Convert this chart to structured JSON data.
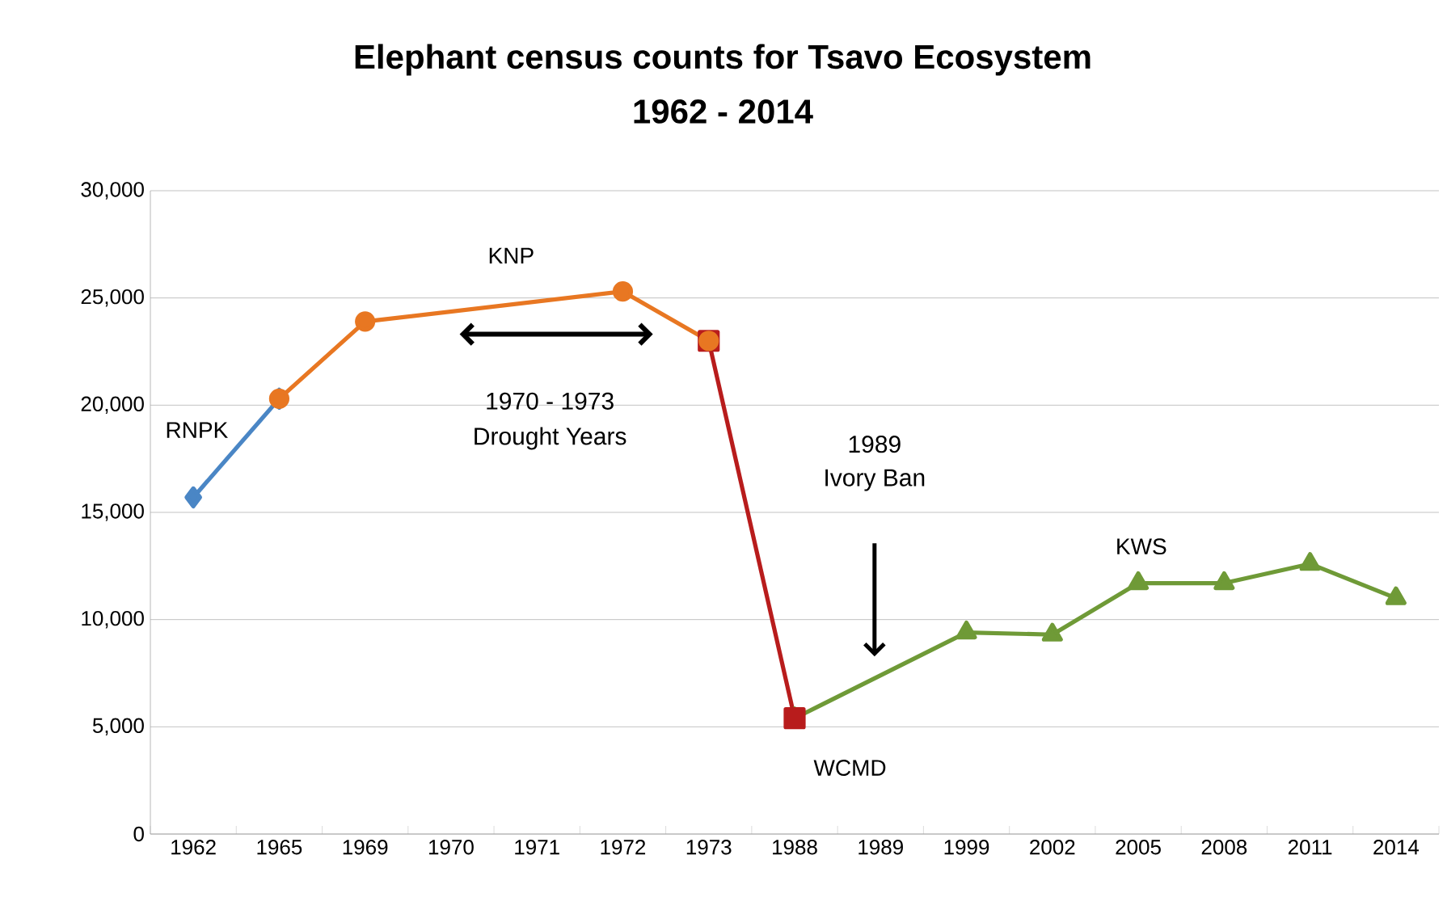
{
  "chart_data": {
    "type": "line",
    "title": "Elephant census counts for Tsavo Ecosystem",
    "subtitle": "1962 - 2014",
    "categories": [
      "1962",
      "1965",
      "1969",
      "1970",
      "1971",
      "1972",
      "1973",
      "1988",
      "1989",
      "1999",
      "2002",
      "2005",
      "2008",
      "2011",
      "2014"
    ],
    "series": [
      {
        "name": "KWS",
        "color": "#6f9a37",
        "marker": "triangle",
        "values": [
          null,
          null,
          null,
          null,
          null,
          null,
          null,
          5400,
          null,
          9400,
          9300,
          11700,
          11700,
          12600,
          11000
        ]
      },
      {
        "name": "RNPK",
        "color": "#4a86c5",
        "marker": "diamond",
        "values": [
          15700,
          20300,
          null,
          null,
          null,
          null,
          null,
          null,
          null,
          null,
          null,
          null,
          null,
          null,
          null
        ]
      },
      {
        "name": "WCMD",
        "color": "#b81c1c",
        "marker": "square",
        "values": [
          null,
          null,
          null,
          null,
          null,
          null,
          23000,
          5400,
          null,
          null,
          null,
          null,
          null,
          null,
          null
        ]
      },
      {
        "name": "KNP",
        "color": "#e87722",
        "marker": "circle",
        "values": [
          null,
          20300,
          23900,
          null,
          null,
          25300,
          23000,
          null,
          null,
          null,
          null,
          null,
          null,
          null,
          null
        ]
      }
    ],
    "ylim": [
      0,
      30000
    ],
    "yticks": [
      0,
      {
        "value": 5000,
        "label": "5,000"
      },
      {
        "value": 10000,
        "label": "10,000"
      },
      {
        "value": 15000,
        "label": "15,000"
      },
      {
        "value": 20000,
        "label": "20,000"
      },
      {
        "value": 25000,
        "label": "25,000"
      },
      {
        "value": 30000,
        "label": "30,000"
      }
    ],
    "grid": "y",
    "line_style": "solid",
    "annotations": [
      "1970 - 1973",
      "Drought Years",
      "1989",
      "Ivory Ban"
    ]
  }
}
